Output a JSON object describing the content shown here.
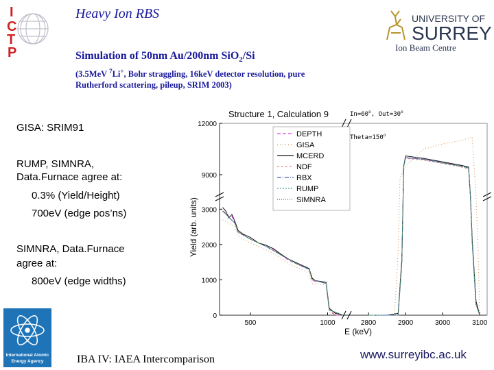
{
  "header": {
    "title": "Heavy Ion RBS",
    "subtitle_main": "Simulation of 50nm Au/200nm SiO",
    "subtitle_sub": "2",
    "subtitle_tail": "/Si",
    "conditions_line1_pre": "(3.5MeV ",
    "conditions_line1_mass": "7",
    "conditions_line1_li": "Li",
    "conditions_line1_charge": "+",
    "conditions_line1_post": ",  Bohr straggling, 16keV detector resolution, pure",
    "conditions_line2": "Rutherford scattering, pileup, SRIM 2003)"
  },
  "logos": {
    "ictp_letters": [
      "I",
      "C",
      "T",
      "P"
    ],
    "university_line1": "UNIVERSITY OF",
    "university_line2": "SURREY",
    "centre": "Ion Beam Centre",
    "iaea_line1": "International Atomic",
    "iaea_line2": "Energy Agency"
  },
  "sidebar": {
    "gisa": "GISA:  SRIM91",
    "rump_line1": "RUMP, SIMNRA,",
    "rump_line2": "Data.Furnace agree at:",
    "rump_item1": "0.3% (Yield/Height)",
    "rump_item2": "700eV (edge pos’ns)",
    "simnra_line1": "SIMNRA, Data.Furnace",
    "simnra_line2": "agree at:",
    "simnra_item1": "800eV (edge widths)"
  },
  "footer": {
    "left": "IBA IV:  IAEA Intercomparison",
    "url": "www.surreyibc.ac.uk"
  },
  "colors": {
    "title_blue": "#1a1a9c",
    "ictp_red": "#cc2222",
    "surrey_navy": "#2a3550",
    "iaea_blue": "#1f74b8"
  },
  "chart_data": {
    "type": "line",
    "title": "Structure 1, Calculation 9",
    "xlabel": "E (keV)",
    "ylabel": "Yield (arb. units)",
    "annotations": {
      "angles_pre": "In=60",
      "angles_mid": ", Out=30",
      "deg": "o",
      "theta_pre": "Theta=150",
      "theta_deg": "o"
    },
    "x_ticks_left": [
      "500",
      "1000"
    ],
    "x_ticks_right": [
      "2800",
      "2900",
      "3000",
      "3100"
    ],
    "y_ticks_lower": [
      "0",
      "1000",
      "2000",
      "3000"
    ],
    "y_ticks_upper": [
      "9000",
      "12000"
    ],
    "x_segments": [
      {
        "range": [
          300,
          1100
        ],
        "ticks": [
          500,
          1000
        ]
      },
      {
        "range": [
          2750,
          3120
        ],
        "ticks": [
          2800,
          2900,
          3000,
          3100
        ]
      }
    ],
    "y_segments": [
      {
        "range": [
          0,
          3200
        ],
        "ticks": [
          0,
          1000,
          2000,
          3000
        ]
      },
      {
        "range": [
          8000,
          12000
        ],
        "ticks": [
          9000,
          12000
        ]
      }
    ],
    "legend_position": "top-right",
    "series": [
      {
        "name": "DEPTH",
        "color": "#e040e0",
        "dash": "5,3",
        "x": [
          320,
          340,
          360,
          380,
          400,
          420,
          450,
          500,
          550,
          600,
          650,
          700,
          750,
          800,
          850,
          880,
          900,
          920,
          950,
          990,
          1000,
          1010,
          1050,
          1100,
          2800,
          2850,
          2880,
          2890,
          2895,
          2900,
          2950,
          3000,
          3050,
          3070,
          3075,
          3080,
          3090,
          3100
        ],
        "y": [
          2950,
          2900,
          2800,
          2800,
          2600,
          2350,
          2280,
          2150,
          2050,
          1950,
          1850,
          1700,
          1550,
          1450,
          1350,
          1300,
          1000,
          950,
          950,
          900,
          550,
          150,
          0,
          0,
          0,
          0,
          0,
          1500,
          9500,
          10000,
          9900,
          9700,
          9500,
          9400,
          6000,
          2000,
          300,
          0
        ]
      },
      {
        "name": "GISA",
        "color": "#d4904a",
        "dash": "1,3",
        "x": [
          320,
          340,
          360,
          380,
          400,
          420,
          450,
          500,
          550,
          600,
          650,
          700,
          750,
          800,
          850,
          880,
          900,
          920,
          950,
          990,
          1000,
          1010,
          1050,
          1100,
          2800,
          2850,
          2870,
          2880,
          2885,
          2900,
          2950,
          3000,
          3050,
          3080,
          3090,
          3095,
          3100
        ],
        "y": [
          2700,
          2650,
          2600,
          2550,
          2500,
          2250,
          2150,
          2050,
          1950,
          1850,
          1750,
          1600,
          1450,
          1350,
          1250,
          1200,
          900,
          880,
          880,
          850,
          500,
          100,
          0,
          0,
          0,
          0,
          0,
          1800,
          8800,
          9500,
          10500,
          10800,
          11000,
          11200,
          6000,
          2000,
          0
        ]
      },
      {
        "name": "MCERD",
        "color": "#111111",
        "dash": "",
        "x": [
          320,
          340,
          360,
          380,
          400,
          420,
          450,
          500,
          550,
          600,
          650,
          700,
          750,
          800,
          850,
          880,
          900,
          920,
          950,
          990,
          1000,
          1010,
          1050,
          1100,
          2800,
          2850,
          2880,
          2890,
          2895,
          2900,
          2950,
          3000,
          3050,
          3070,
          3075,
          3080,
          3090,
          3100
        ],
        "y": [
          3050,
          2950,
          2750,
          2850,
          2650,
          2400,
          2300,
          2200,
          2050,
          1980,
          1880,
          1720,
          1580,
          1480,
          1380,
          1320,
          1050,
          980,
          960,
          930,
          580,
          200,
          50,
          0,
          0,
          0,
          50,
          1600,
          9500,
          10100,
          9950,
          9750,
          9550,
          9450,
          6200,
          2100,
          400,
          0
        ]
      },
      {
        "name": "NDF",
        "color": "#f08080",
        "dash": "3,3",
        "x": [
          320,
          400,
          420,
          500,
          600,
          700,
          800,
          880,
          900,
          990,
          1000,
          1010,
          1100,
          2800,
          2880,
          2890,
          2895,
          2900,
          2950,
          3000,
          3050,
          3070,
          3075,
          3080,
          3090,
          3100
        ],
        "y": [
          2950,
          2600,
          2350,
          2150,
          1950,
          1700,
          1450,
          1300,
          1000,
          900,
          550,
          150,
          0,
          0,
          0,
          1500,
          9400,
          9950,
          9850,
          9650,
          9450,
          9350,
          6000,
          2000,
          300,
          0
        ]
      },
      {
        "name": "RBX",
        "color": "#4a5ab0",
        "dash": "6,2,1,2",
        "x": [
          320,
          400,
          420,
          500,
          600,
          700,
          800,
          880,
          900,
          990,
          1000,
          1010,
          1100,
          2800,
          2880,
          2890,
          2895,
          2900,
          2950,
          3000,
          3050,
          3070,
          3075,
          3080,
          3090,
          3100
        ],
        "y": [
          2950,
          2600,
          2350,
          2150,
          1950,
          1700,
          1450,
          1300,
          1000,
          900,
          550,
          150,
          0,
          0,
          0,
          1500,
          9500,
          10000,
          9900,
          9700,
          9500,
          9400,
          6000,
          2000,
          300,
          0
        ]
      },
      {
        "name": "RUMP",
        "color": "#40a0a0",
        "dash": "2,2",
        "x": [
          320,
          400,
          420,
          500,
          600,
          700,
          800,
          880,
          900,
          990,
          1000,
          1010,
          1100,
          2800,
          2880,
          2890,
          2895,
          2900,
          2950,
          3000,
          3050,
          3070,
          3075,
          3080,
          3090,
          3100
        ],
        "y": [
          2950,
          2600,
          2350,
          2150,
          1950,
          1700,
          1450,
          1300,
          1000,
          900,
          550,
          150,
          0,
          0,
          0,
          1500,
          9450,
          9980,
          9880,
          9680,
          9480,
          9380,
          6000,
          2000,
          300,
          0
        ]
      },
      {
        "name": "SIMNRA",
        "color": "#2a7a2a",
        "dash": "1,2",
        "x": [
          320,
          400,
          420,
          500,
          600,
          700,
          800,
          880,
          900,
          990,
          1000,
          1010,
          1100,
          2800,
          2880,
          2890,
          2895,
          2900,
          2950,
          3000,
          3050,
          3070,
          3075,
          3080,
          3090,
          3100
        ],
        "y": [
          2950,
          2600,
          2350,
          2150,
          1950,
          1700,
          1450,
          1300,
          1000,
          900,
          550,
          150,
          0,
          0,
          0,
          1500,
          9500,
          10000,
          9900,
          9700,
          9500,
          9400,
          6000,
          2000,
          300,
          0
        ]
      }
    ]
  }
}
